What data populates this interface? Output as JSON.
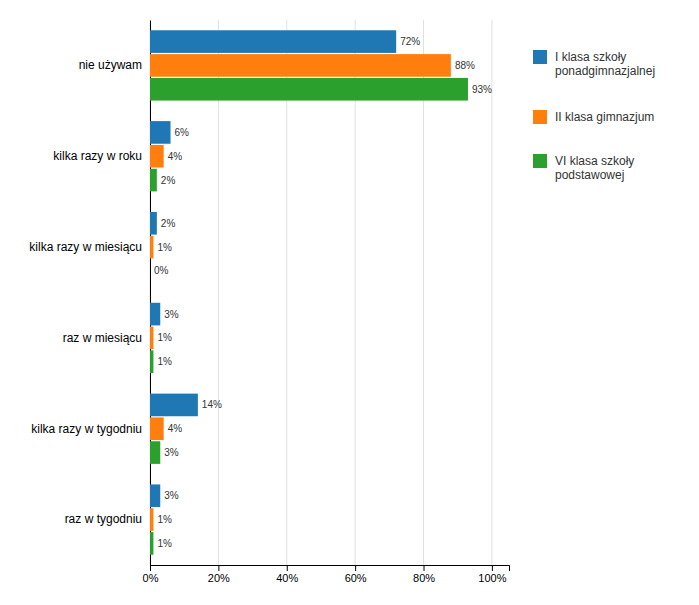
{
  "chart_data": {
    "type": "bar",
    "orientation": "horizontal",
    "categories": [
      "nie używam",
      "kilka razy w roku",
      "kilka razy w miesiącu",
      "raz w miesiącu",
      "kilka razy w tygodniu",
      "raz w tygodniu"
    ],
    "series": [
      {
        "name": "I klasa szkoły\nponadgimnazjalnej",
        "values": [
          72,
          6,
          2,
          3,
          14,
          3
        ],
        "value_labels": [
          "72%",
          "6%",
          "2%",
          "3%",
          "14%",
          "3%"
        ]
      },
      {
        "name": "II klasa gimnazjum",
        "values": [
          88,
          4,
          1,
          1,
          4,
          1
        ],
        "value_labels": [
          "88%",
          "4%",
          "1%",
          "1%",
          "4%",
          "1%"
        ]
      },
      {
        "name": "VI klasa szkoły\npodstawowej",
        "values": [
          93,
          2,
          0,
          1,
          3,
          1
        ],
        "value_labels": [
          "93%",
          "2%",
          "0%",
          "1%",
          "3%",
          "1%"
        ]
      }
    ],
    "xlim": [
      0,
      105
    ],
    "xticks": [
      {
        "value": 0,
        "label": "0%"
      },
      {
        "value": 20,
        "label": "20%"
      },
      {
        "value": 40,
        "label": "40%"
      },
      {
        "value": 60,
        "label": "60%"
      },
      {
        "value": 80,
        "label": "80%"
      },
      {
        "value": 100,
        "label": "100%"
      }
    ],
    "grid": true,
    "data_labels": true,
    "legend": "right"
  }
}
